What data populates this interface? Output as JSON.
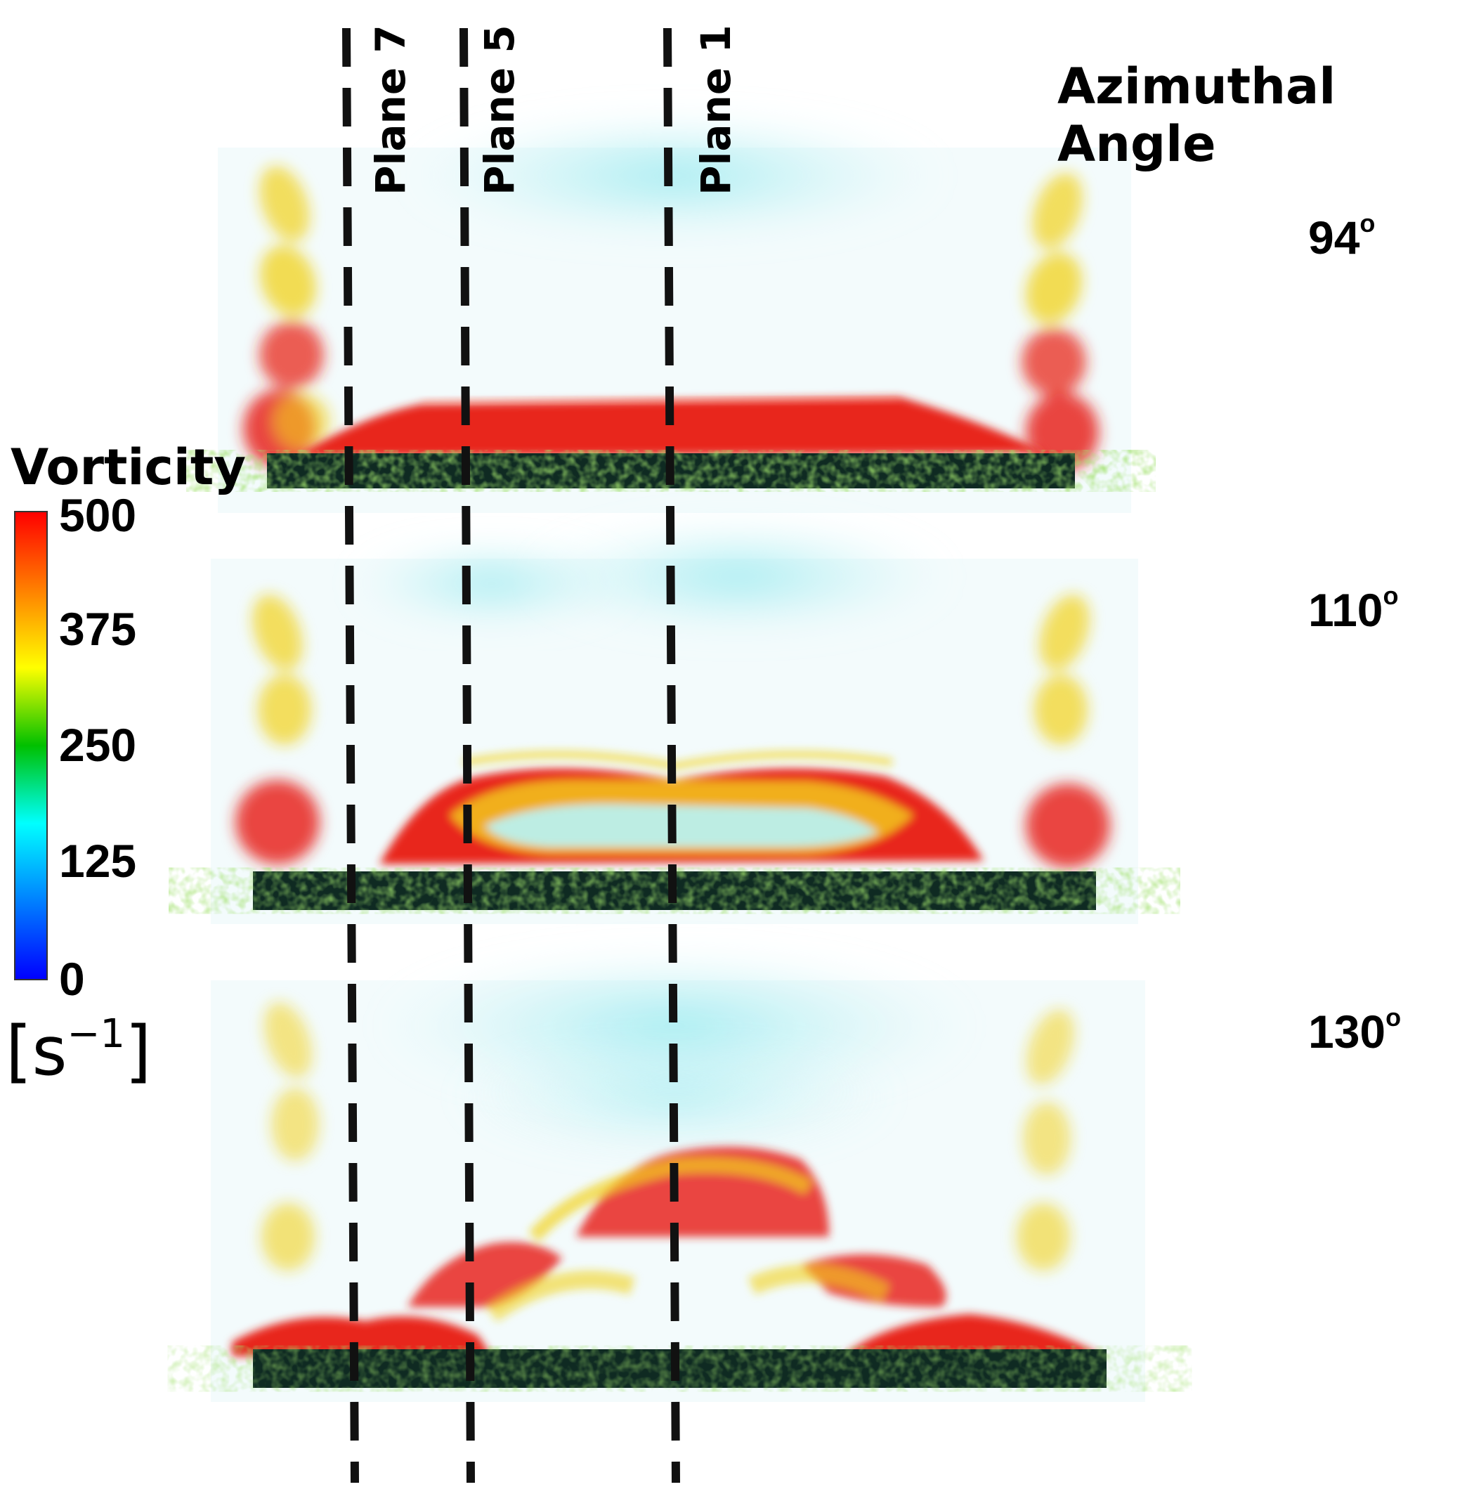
{
  "header": {
    "title": "Azimuthal Angle"
  },
  "planes": [
    {
      "label": "Plane 7"
    },
    {
      "label": "Plane 5"
    },
    {
      "label": "Plane 1"
    }
  ],
  "panels": [
    {
      "angle": "94",
      "degree_mark": "o"
    },
    {
      "angle": "110",
      "degree_mark": "o"
    },
    {
      "angle": "130",
      "degree_mark": "o"
    }
  ],
  "colorbar": {
    "title": "Vorticity",
    "ticks": [
      "500",
      "375",
      "250",
      "125",
      "0"
    ],
    "unit_base": "[s",
    "unit_exp": "−1",
    "unit_close": "]",
    "colors": [
      "#ff0000",
      "#ff8000",
      "#ffff00",
      "#00c000",
      "#00ffff",
      "#0080ff",
      "#0000ff"
    ]
  },
  "colors": {
    "high_vorticity": "#e8251c",
    "mid_vorticity": "#f2d21c",
    "low_vorticity": "#7fe6ea",
    "plate": "#0f2a22",
    "dashed_line": "#111111"
  }
}
